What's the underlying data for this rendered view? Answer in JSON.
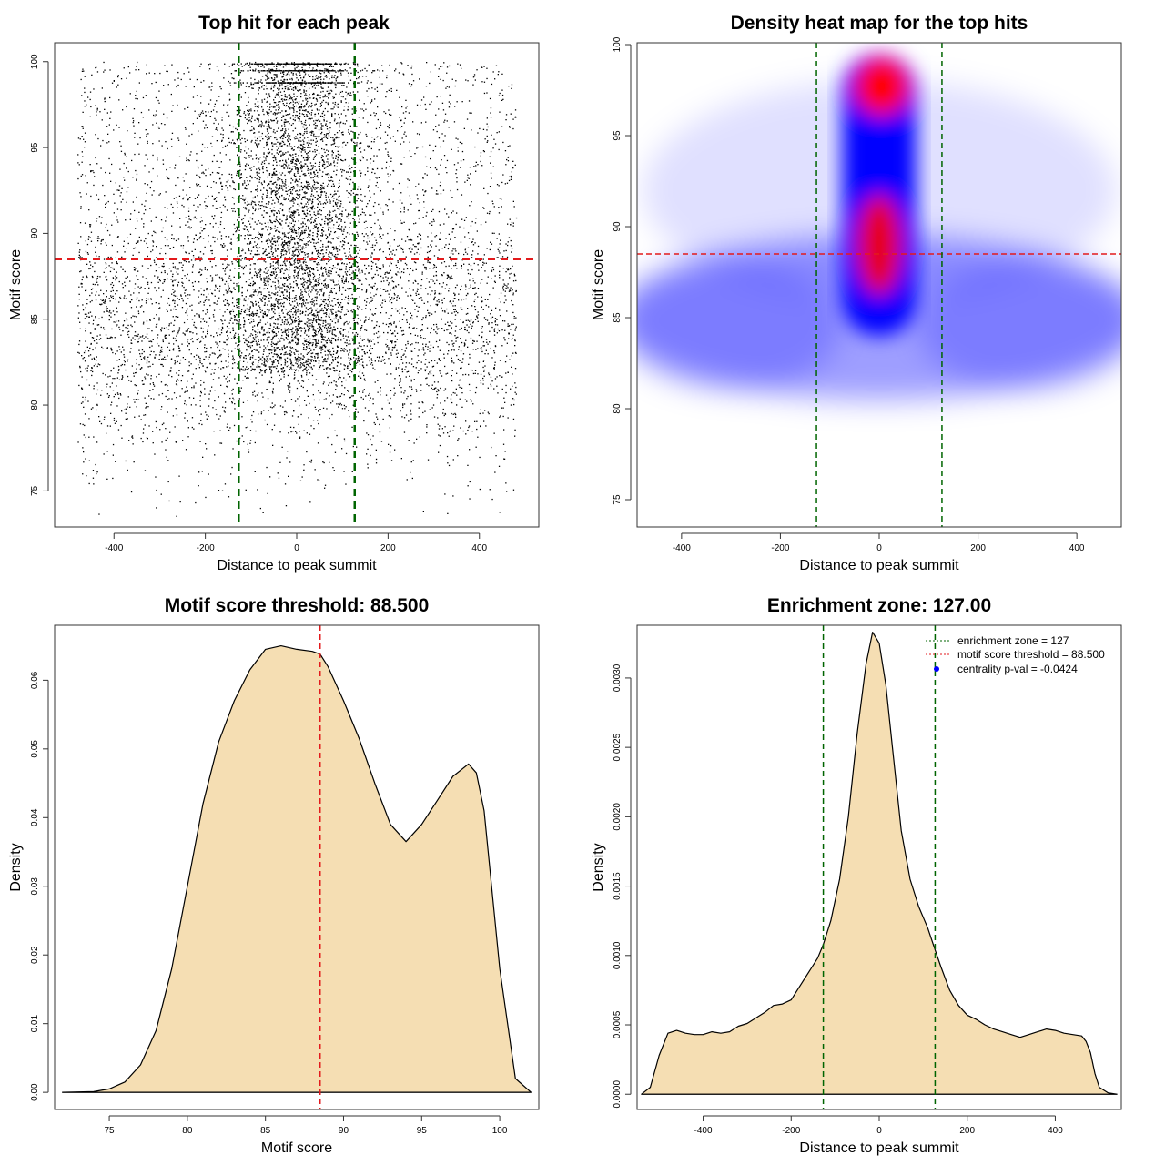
{
  "chart_data": [
    {
      "type": "scatter",
      "title": "Top hit for each peak",
      "xlabel": "Distance to peak summit",
      "ylabel": "Motif score",
      "xlim": [
        -530,
        530
      ],
      "ylim": [
        72.9,
        101.1
      ],
      "xticks": [
        -400,
        -200,
        0,
        200,
        400
      ],
      "yticks": [
        75,
        80,
        85,
        90,
        95,
        100
      ],
      "hlines": [
        {
          "value": 88.5,
          "color": "#e31a1c"
        }
      ],
      "vlines": [
        {
          "value": -127,
          "color": "#006400"
        },
        {
          "value": 127,
          "color": "#006400"
        }
      ],
      "point_color": "#000000",
      "grid": false
    },
    {
      "type": "heatmap",
      "title": "Density heat map for the top hits",
      "xlabel": "Distance to peak summit",
      "ylabel": "Motif score",
      "xlim": [
        -490,
        490
      ],
      "ylim": [
        73.5,
        100.1
      ],
      "xticks": [
        -400,
        -200,
        0,
        200,
        400
      ],
      "yticks": [
        75,
        80,
        85,
        90,
        95,
        100
      ],
      "hlines": [
        {
          "value": 88.5,
          "color": "#e31a1c"
        }
      ],
      "vlines": [
        {
          "value": -127,
          "color": "#006400"
        },
        {
          "value": 127,
          "color": "#006400"
        }
      ],
      "colors": {
        "low": "#ffffff",
        "mid": "#0000ff",
        "high": "#ff0000"
      },
      "grid": false
    },
    {
      "type": "area",
      "title": "Motif score threshold: 88.500",
      "xlabel": "Motif score",
      "ylabel": "Density",
      "xlim": [
        71.5,
        102.5
      ],
      "ylim": [
        -0.0025,
        0.068
      ],
      "xticks": [
        75,
        80,
        85,
        90,
        95,
        100
      ],
      "yticks": [
        0.0,
        0.01,
        0.02,
        0.03,
        0.04,
        0.05,
        0.06
      ],
      "ytick_labels": [
        "0.00",
        "0.01",
        "0.02",
        "0.03",
        "0.04",
        "0.05",
        "0.06"
      ],
      "x": [
        72,
        74,
        75,
        76,
        77,
        78,
        79,
        80,
        81,
        82,
        83,
        84,
        85,
        86,
        87,
        88,
        88.5,
        89,
        90,
        91,
        92,
        93,
        94,
        95,
        96,
        97,
        98,
        98.5,
        99,
        100,
        101,
        102
      ],
      "values": [
        0,
        0.0001,
        0.0005,
        0.0015,
        0.004,
        0.009,
        0.018,
        0.03,
        0.042,
        0.051,
        0.057,
        0.0615,
        0.0645,
        0.065,
        0.0645,
        0.0642,
        0.0638,
        0.062,
        0.057,
        0.0515,
        0.045,
        0.039,
        0.0365,
        0.039,
        0.0425,
        0.046,
        0.0478,
        0.0465,
        0.041,
        0.018,
        0.002,
        0
      ],
      "vlines": [
        {
          "value": 88.5,
          "color": "#e31a1c"
        }
      ],
      "fill": "#f5deb3",
      "grid": false
    },
    {
      "type": "area",
      "title": "Enrichment zone: 127.00",
      "xlabel": "Distance to peak summit",
      "ylabel": "Density",
      "xlim": [
        -550,
        550
      ],
      "ylim": [
        -0.00011,
        0.00338
      ],
      "xticks": [
        -400,
        -200,
        0,
        200,
        400
      ],
      "yticks": [
        0.0,
        0.0005,
        0.001,
        0.0015,
        0.002,
        0.0025,
        0.003
      ],
      "ytick_labels": [
        "0.0000",
        "0.0005",
        "0.0010",
        "0.0015",
        "0.0020",
        "0.0025",
        "0.0030"
      ],
      "x": [
        -540,
        -520,
        -500,
        -480,
        -460,
        -440,
        -420,
        -400,
        -380,
        -360,
        -340,
        -320,
        -300,
        -280,
        -260,
        -240,
        -220,
        -200,
        -180,
        -160,
        -140,
        -127,
        -110,
        -90,
        -70,
        -50,
        -30,
        -15,
        0,
        15,
        30,
        50,
        70,
        90,
        110,
        127,
        140,
        160,
        180,
        200,
        220,
        240,
        260,
        280,
        300,
        320,
        340,
        360,
        380,
        400,
        420,
        440,
        460,
        470,
        480,
        490,
        500,
        520,
        540
      ],
      "values": [
        0,
        5e-05,
        0.00028,
        0.00044,
        0.00046,
        0.00044,
        0.00043,
        0.00043,
        0.00045,
        0.00044,
        0.00045,
        0.00049,
        0.00051,
        0.00055,
        0.00059,
        0.00064,
        0.00065,
        0.00068,
        0.00078,
        0.00088,
        0.00098,
        0.00108,
        0.00125,
        0.00155,
        0.002,
        0.0026,
        0.0031,
        0.00333,
        0.00325,
        0.00295,
        0.0025,
        0.0019,
        0.00155,
        0.00135,
        0.0012,
        0.00104,
        0.00092,
        0.00075,
        0.00064,
        0.00057,
        0.00054,
        0.0005,
        0.00047,
        0.00045,
        0.00043,
        0.00041,
        0.00043,
        0.00045,
        0.00047,
        0.00046,
        0.00044,
        0.00043,
        0.00042,
        0.00038,
        0.0003,
        0.00015,
        5e-05,
        1e-05,
        0
      ],
      "vlines": [
        {
          "value": -127,
          "color": "#006400"
        },
        {
          "value": 127,
          "color": "#006400"
        }
      ],
      "fill": "#f5deb3",
      "legend_position": "top-right",
      "legend": [
        {
          "label": "enrichment zone = 127",
          "kind": "line",
          "color": "#006400"
        },
        {
          "label": "motif score threshold = 88.500",
          "kind": "line",
          "color": "#e31a1c"
        },
        {
          "label": "centrality p-val = -0.0424",
          "kind": "point",
          "color": "#0000ff"
        }
      ],
      "grid": false
    }
  ]
}
